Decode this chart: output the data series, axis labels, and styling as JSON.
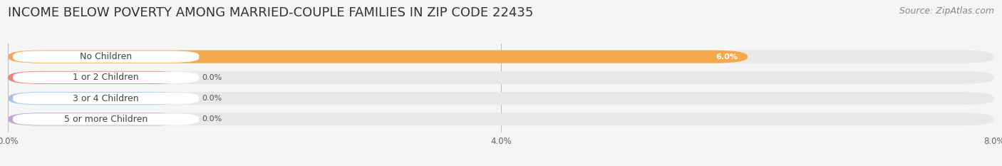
{
  "title": "INCOME BELOW POVERTY AMONG MARRIED-COUPLE FAMILIES IN ZIP CODE 22435",
  "source": "Source: ZipAtlas.com",
  "categories": [
    "No Children",
    "1 or 2 Children",
    "3 or 4 Children",
    "5 or more Children"
  ],
  "values": [
    6.0,
    0.0,
    0.0,
    0.0
  ],
  "bar_colors": [
    "#F5A94E",
    "#F08080",
    "#A8C4E0",
    "#C4A8D0"
  ],
  "background_color": "#f5f5f5",
  "bar_bg_color": "#E8E8E8",
  "xlim_max": 8.0,
  "xticks": [
    0.0,
    4.0,
    8.0
  ],
  "xtick_labels": [
    "0.0%",
    "4.0%",
    "8.0%"
  ],
  "title_fontsize": 13,
  "source_fontsize": 9,
  "label_fontsize": 9,
  "value_fontsize": 8
}
